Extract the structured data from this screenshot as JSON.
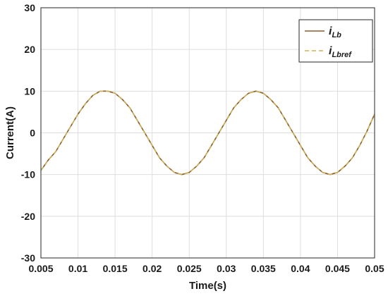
{
  "chart_data": {
    "type": "line",
    "title": "",
    "xlabel": "Time(s)",
    "ylabel": "Current(A)",
    "xlim": [
      0.005,
      0.05
    ],
    "ylim": [
      -30,
      30
    ],
    "grid": true,
    "legend_position": "top-right",
    "x_ticks": [
      0.005,
      0.01,
      0.015,
      0.02,
      0.025,
      0.03,
      0.035,
      0.04,
      0.045,
      0.05
    ],
    "x_tick_labels": [
      "0.005",
      "0.01",
      "0.015",
      "0.02",
      "0.025",
      "0.03",
      "0.035",
      "0.04",
      "0.045",
      "0.05"
    ],
    "y_ticks": [
      -30,
      -20,
      -10,
      0,
      10,
      20,
      30
    ],
    "y_tick_labels": [
      "-30",
      "-20",
      "-10",
      "0",
      "10",
      "20",
      "30"
    ],
    "series": [
      {
        "name": "i_Lb",
        "legend_main": "i",
        "legend_sub": "Lb",
        "color": "#8b5a2b",
        "style": "solid",
        "x": [
          0.005,
          0.006,
          0.007,
          0.008,
          0.009,
          0.01,
          0.011,
          0.012,
          0.013,
          0.014,
          0.015,
          0.016,
          0.017,
          0.018,
          0.019,
          0.02,
          0.021,
          0.022,
          0.023,
          0.024,
          0.025,
          0.026,
          0.027,
          0.028,
          0.029,
          0.03,
          0.031,
          0.032,
          0.033,
          0.034,
          0.035,
          0.036,
          0.037,
          0.038,
          0.039,
          0.04,
          0.041,
          0.042,
          0.043,
          0.044,
          0.045,
          0.046,
          0.047,
          0.048,
          0.049,
          0.05
        ],
        "y": [
          -9,
          -6.5,
          -4.5,
          -1.5,
          1.5,
          4.5,
          7,
          9,
          10,
          10,
          9.5,
          8,
          6,
          3,
          0,
          -3,
          -6,
          -8,
          -9.5,
          -10,
          -9.5,
          -8,
          -6,
          -3,
          0,
          3,
          6,
          8,
          9.5,
          10,
          9.5,
          8,
          6,
          3,
          0,
          -3,
          -6,
          -8,
          -9.5,
          -10,
          -9.5,
          -8,
          -6,
          -3,
          0.5,
          4.5
        ]
      },
      {
        "name": "i_Lbref",
        "legend_main": "i",
        "legend_sub": "Lbref",
        "color": "#c9b25a",
        "style": "dashed",
        "x": [
          0.005,
          0.006,
          0.007,
          0.008,
          0.009,
          0.01,
          0.011,
          0.012,
          0.013,
          0.014,
          0.015,
          0.016,
          0.017,
          0.018,
          0.019,
          0.02,
          0.021,
          0.022,
          0.023,
          0.024,
          0.025,
          0.026,
          0.027,
          0.028,
          0.029,
          0.03,
          0.031,
          0.032,
          0.033,
          0.034,
          0.035,
          0.036,
          0.037,
          0.038,
          0.039,
          0.04,
          0.041,
          0.042,
          0.043,
          0.044,
          0.045,
          0.046,
          0.047,
          0.048,
          0.049,
          0.05
        ],
        "y": [
          -9,
          -6.5,
          -4.5,
          -1.5,
          1.5,
          4.5,
          7,
          9,
          10,
          10,
          9.5,
          8,
          6,
          3,
          0,
          -3,
          -6,
          -8,
          -9.5,
          -10,
          -9.5,
          -8,
          -6,
          -3,
          0,
          3,
          6,
          8,
          9.5,
          10,
          9.5,
          8,
          6,
          3,
          0,
          -3,
          -6,
          -8,
          -9.5,
          -10,
          -9.5,
          -8,
          -6,
          -3,
          0.5,
          4.5
        ]
      }
    ]
  }
}
